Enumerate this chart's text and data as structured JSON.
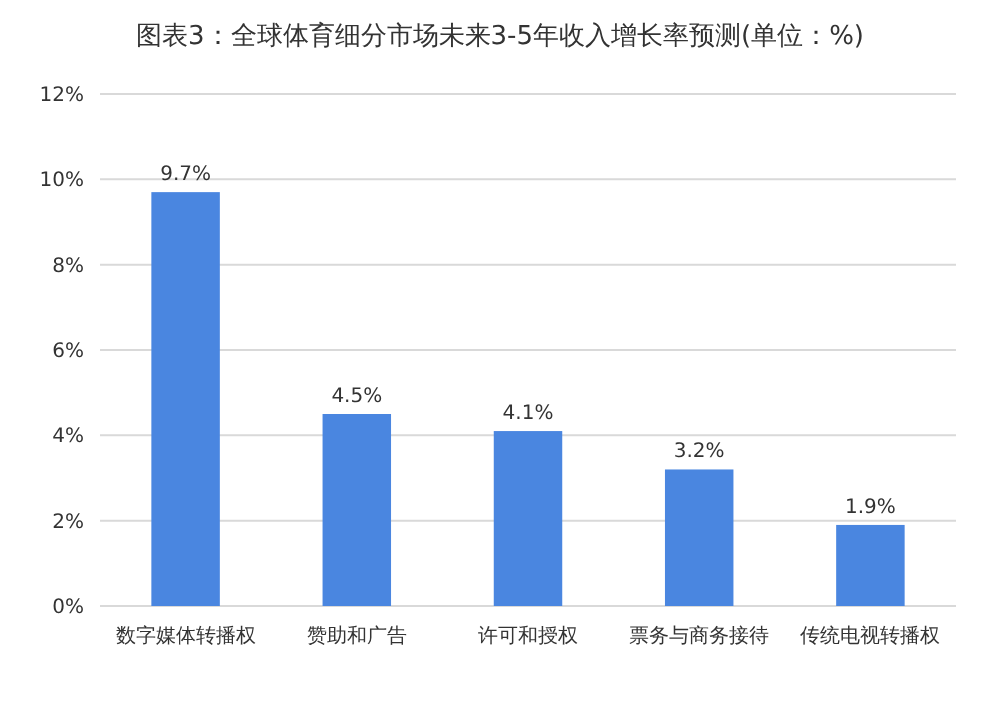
{
  "chart_data": {
    "type": "bar",
    "title": "图表3：全球体育细分市场未来3-5年收入增长率预测(单位：%)",
    "categories": [
      "数字媒体转播权",
      "赞助和广告",
      "许可和授权",
      "票务与商务接待",
      "传统电视转播权"
    ],
    "values": [
      9.7,
      4.5,
      4.1,
      3.2,
      1.9
    ],
    "value_labels": [
      "9.7%",
      "4.5%",
      "4.1%",
      "3.2%",
      "1.9%"
    ],
    "color": "#4a86e0",
    "ylim": [
      0,
      12
    ],
    "yticks": [
      {
        "value": 0,
        "label": "0%"
      },
      {
        "value": 2,
        "label": "2%"
      },
      {
        "value": 4,
        "label": "4%"
      },
      {
        "value": 6,
        "label": "6%"
      },
      {
        "value": 8,
        "label": "8%"
      },
      {
        "value": 10,
        "label": "10%"
      },
      {
        "value": 12,
        "label": "12%"
      }
    ],
    "grid": "y"
  }
}
